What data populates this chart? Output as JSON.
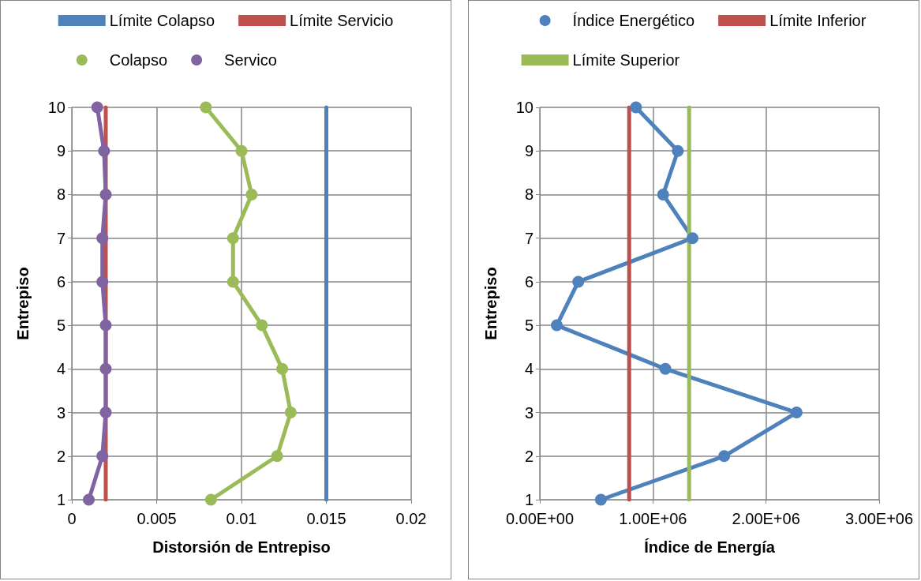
{
  "chart_data": [
    {
      "type": "line",
      "xlabel": "Distorsión de Entrepiso",
      "ylabel": "Entrepiso",
      "xlim": [
        0,
        0.02
      ],
      "xticks": [
        0,
        0.005,
        0.01,
        0.015,
        0.02
      ],
      "ylim": [
        1,
        10
      ],
      "yticks": [
        1,
        2,
        3,
        4,
        5,
        6,
        7,
        8,
        9,
        10
      ],
      "grid": true,
      "legend": "top",
      "series": [
        {
          "name": "Límite Colapso",
          "color": "#4f81bd",
          "marker": "none",
          "x": [
            0.015,
            0.015
          ],
          "values": [
            1,
            10
          ]
        },
        {
          "name": "Límite Servicio",
          "color": "#c0504d",
          "marker": "none",
          "x": [
            0.002,
            0.002
          ],
          "values": [
            1,
            10
          ]
        },
        {
          "name": "Colapso",
          "color": "#9bbb59",
          "marker": "circle",
          "x": [
            0.0082,
            0.0121,
            0.0129,
            0.0124,
            0.0112,
            0.0095,
            0.0095,
            0.0106,
            0.01,
            0.0079
          ],
          "values": [
            1,
            2,
            3,
            4,
            5,
            6,
            7,
            8,
            9,
            10
          ]
        },
        {
          "name": "Servico",
          "color": "#8064a2",
          "marker": "circle",
          "x": [
            0.001,
            0.0018,
            0.002,
            0.002,
            0.002,
            0.0018,
            0.0018,
            0.002,
            0.0019,
            0.0015
          ],
          "values": [
            1,
            2,
            3,
            4,
            5,
            6,
            7,
            8,
            9,
            10
          ]
        }
      ]
    },
    {
      "type": "line",
      "xlabel": "Índice de Energía",
      "ylabel": "Entrepiso",
      "xlim": [
        0,
        3000000
      ],
      "xticks": [
        {
          "value": 0,
          "label": "0.00E+00"
        },
        {
          "value": 1000000,
          "label": "1.00E+06"
        },
        {
          "value": 2000000,
          "label": "2.00E+06"
        },
        {
          "value": 3000000,
          "label": "3.00E+06"
        }
      ],
      "ylim": [
        1,
        10
      ],
      "yticks": [
        1,
        2,
        3,
        4,
        5,
        6,
        7,
        8,
        9,
        10
      ],
      "grid": true,
      "legend": "top",
      "series": [
        {
          "name": "Índice Energético",
          "color": "#4f81bd",
          "marker": "circle",
          "x": [
            540000,
            1630000,
            2270000,
            1110000,
            150000,
            340000,
            1350000,
            1090000,
            1220000,
            850000
          ],
          "values": [
            1,
            2,
            3,
            4,
            5,
            6,
            7,
            8,
            9,
            10
          ]
        },
        {
          "name": "Límite Inferior",
          "color": "#c0504d",
          "marker": "none",
          "x": [
            790000,
            790000
          ],
          "values": [
            1,
            10
          ]
        },
        {
          "name": "Límite Superior",
          "color": "#9bbb59",
          "marker": "none",
          "x": [
            1320000,
            1320000
          ],
          "values": [
            1,
            10
          ]
        }
      ]
    }
  ]
}
